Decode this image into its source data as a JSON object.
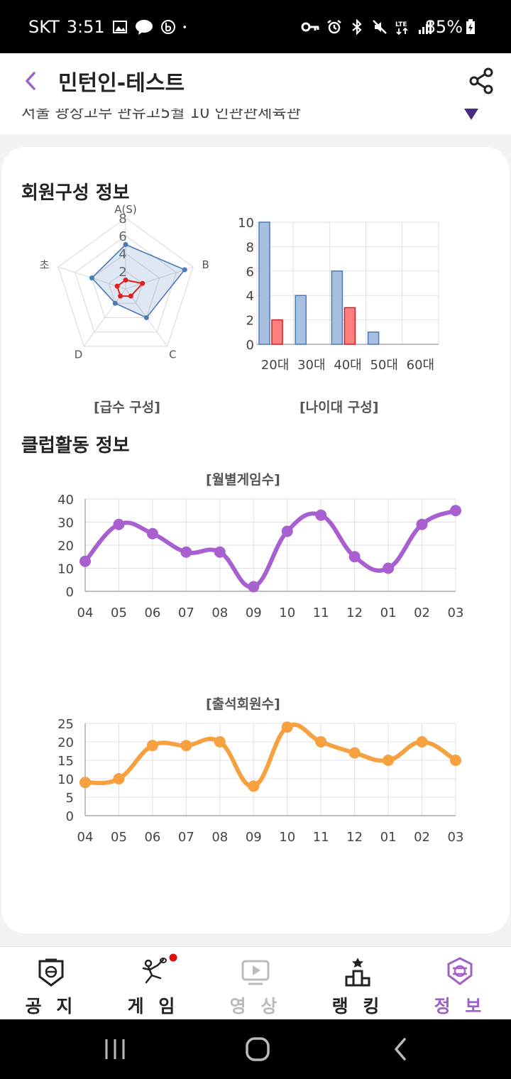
{
  "status_bar": {
    "carrier": "SKT",
    "time": "3:51",
    "battery": "85%"
  },
  "header": {
    "title": "민턴인-테스트"
  },
  "under_header_text": "서울 광장고무 관유고5월 10 인관관제육관",
  "member_section": {
    "title": "회원구성 정보",
    "grade_chart_caption": "[급수 구성]",
    "age_chart_caption": "[나이대 구성]"
  },
  "club_section": {
    "title": "클럽활동 정보",
    "monthly_games_caption": "[월별게임수]",
    "attendance_caption": "[출석회원수]"
  },
  "chart_data": [
    {
      "type": "radar",
      "axes": [
        "A(S)",
        "B",
        "C",
        "D",
        "초"
      ],
      "ticks": [
        2,
        4,
        6,
        8
      ],
      "range": [
        0,
        8
      ],
      "series": [
        {
          "values": [
            5,
            7,
            4,
            2,
            4
          ],
          "color": "#4a7ab8"
        },
        {
          "values": [
            1,
            2,
            1,
            1,
            1
          ],
          "color": "#e02020"
        }
      ]
    },
    {
      "type": "bar",
      "categories": [
        "20대",
        "30대",
        "40대",
        "50대",
        "60대"
      ],
      "ylim": [
        0,
        10
      ],
      "yticks": [
        0,
        2,
        4,
        6,
        8,
        10
      ],
      "series": [
        {
          "values": [
            10,
            4,
            6,
            1,
            0
          ],
          "color": "#a8c0df",
          "stroke": "#4a7ab8"
        },
        {
          "values": [
            2,
            0,
            3,
            0,
            0
          ],
          "color": "#ff7f7f",
          "stroke": "#cc2222"
        }
      ]
    },
    {
      "type": "line",
      "x": [
        "04",
        "05",
        "06",
        "07",
        "08",
        "09",
        "10",
        "11",
        "12",
        "01",
        "02",
        "03"
      ],
      "values": [
        13,
        29,
        25,
        17,
        17,
        2,
        26,
        33,
        15,
        10,
        29,
        35
      ],
      "ylim": [
        0,
        40
      ],
      "yticks": [
        0,
        10,
        20,
        30,
        40
      ],
      "color": "#a860d0"
    },
    {
      "type": "line",
      "x": [
        "04",
        "05",
        "06",
        "07",
        "08",
        "09",
        "10",
        "11",
        "12",
        "01",
        "02",
        "03"
      ],
      "values": [
        9,
        10,
        19,
        19,
        20,
        8,
        24,
        20,
        17,
        15,
        20,
        15
      ],
      "ylim": [
        0,
        25
      ],
      "yticks": [
        0,
        5,
        10,
        15,
        20,
        25
      ],
      "color": "#f6a040"
    }
  ],
  "bottom_nav": {
    "items": [
      {
        "label": "공 지",
        "icon": "notice-shield-icon",
        "color": "#222222"
      },
      {
        "label": "게 임",
        "icon": "badminton-player-icon",
        "color": "#222222"
      },
      {
        "label": "영 상",
        "icon": "video-play-icon",
        "color": "#bbbbbb"
      },
      {
        "label": "랭 킹",
        "icon": "ranking-podium-icon",
        "color": "#222222"
      },
      {
        "label": "정 보",
        "icon": "info-shield-icon",
        "color": "#a060c8"
      }
    ]
  },
  "colors": {
    "accent": "#a060c8",
    "notification_dot": "#e01010"
  }
}
